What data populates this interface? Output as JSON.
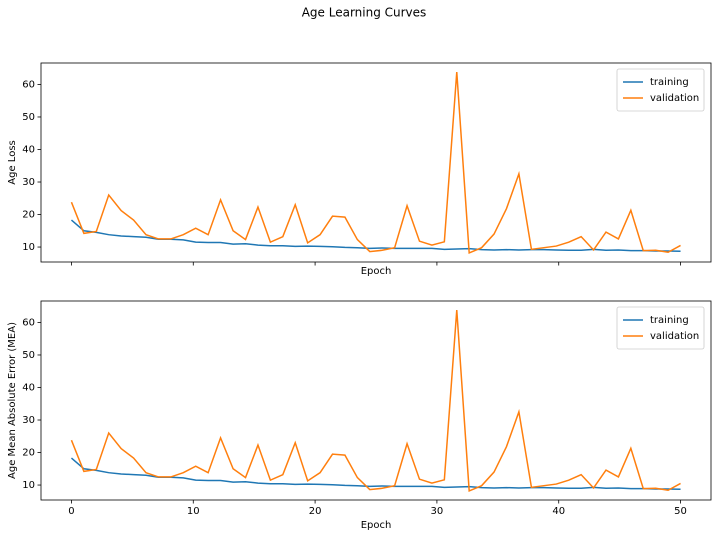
{
  "title": "Age Learning Curves",
  "chart_data": [
    {
      "type": "line",
      "xlabel": "Epoch",
      "ylabel": "Age Loss",
      "show_xtick_labels": false,
      "legend": "upper right",
      "x": [
        0,
        1.02,
        2.04,
        3.06,
        4.08,
        5.1,
        6.12,
        7.14,
        8.16,
        9.18,
        10.2,
        11.22,
        12.24,
        13.27,
        14.29,
        15.31,
        16.33,
        17.35,
        18.37,
        19.39,
        20.41,
        21.43,
        22.45,
        23.47,
        24.49,
        25.51,
        26.53,
        27.55,
        28.57,
        29.59,
        30.61,
        31.63,
        32.65,
        33.67,
        34.69,
        35.71,
        36.73,
        37.76,
        38.78,
        39.8,
        40.82,
        41.84,
        42.86,
        43.88,
        44.9,
        45.92,
        46.94,
        47.96,
        48.98,
        50
      ],
      "series": [
        {
          "name": "training",
          "color": "#1f77b4",
          "values": [
            18.3,
            15,
            14.5,
            13.8,
            13.4,
            13.2,
            13,
            12.4,
            12.4,
            12.2,
            11.5,
            11.4,
            11.4,
            10.9,
            11,
            10.6,
            10.4,
            10.4,
            10.2,
            10.3,
            10.2,
            10.1,
            9.9,
            9.8,
            9.6,
            9.7,
            9.6,
            9.6,
            9.6,
            9.6,
            9.3,
            9.4,
            9.5,
            9.2,
            9.1,
            9.2,
            9.1,
            9.2,
            9.2,
            9.1,
            9.0,
            9.0,
            9.3,
            9.0,
            9.1,
            8.9,
            8.9,
            8.8,
            8.8,
            8.7
          ]
        },
        {
          "name": "validation",
          "color": "#ff7f0e",
          "values": [
            23.8,
            14.2,
            14.8,
            26,
            21.2,
            18.3,
            13.8,
            12.5,
            12.5,
            13.8,
            15.8,
            13.8,
            24.5,
            15,
            12.3,
            22.3,
            11.5,
            13.2,
            23,
            11.3,
            13.8,
            19.5,
            19.2,
            12.3,
            8.6,
            9,
            9.8,
            22.7,
            11.8,
            10.6,
            11.6,
            63.8,
            8.2,
            9.8,
            14,
            21.8,
            32.5,
            9.3,
            9.8,
            10.3,
            11.5,
            13.2,
            9.1,
            14.6,
            12.5,
            21.3,
            8.9,
            9,
            8.4,
            10.5
          ]
        }
      ],
      "xlim": [
        -2.5,
        52.5
      ],
      "ylim": [
        5.4,
        66.6
      ],
      "xticks": [
        0,
        10,
        20,
        30,
        40,
        50
      ],
      "yticks": [
        10,
        20,
        30,
        40,
        50,
        60
      ]
    },
    {
      "type": "line",
      "xlabel": "Epoch",
      "ylabel": "Age Mean Absolute Error (MEA)",
      "show_xtick_labels": true,
      "legend": "upper right",
      "x": [
        0,
        1.02,
        2.04,
        3.06,
        4.08,
        5.1,
        6.12,
        7.14,
        8.16,
        9.18,
        10.2,
        11.22,
        12.24,
        13.27,
        14.29,
        15.31,
        16.33,
        17.35,
        18.37,
        19.39,
        20.41,
        21.43,
        22.45,
        23.47,
        24.49,
        25.51,
        26.53,
        27.55,
        28.57,
        29.59,
        30.61,
        31.63,
        32.65,
        33.67,
        34.69,
        35.71,
        36.73,
        37.76,
        38.78,
        39.8,
        40.82,
        41.84,
        42.86,
        43.88,
        44.9,
        45.92,
        46.94,
        47.96,
        48.98,
        50
      ],
      "series": [
        {
          "name": "training",
          "color": "#1f77b4",
          "values": [
            18.3,
            15,
            14.5,
            13.8,
            13.4,
            13.2,
            13,
            12.4,
            12.4,
            12.2,
            11.5,
            11.4,
            11.4,
            10.9,
            11,
            10.6,
            10.4,
            10.4,
            10.2,
            10.3,
            10.2,
            10.1,
            9.9,
            9.8,
            9.6,
            9.7,
            9.6,
            9.6,
            9.6,
            9.6,
            9.3,
            9.4,
            9.5,
            9.2,
            9.1,
            9.2,
            9.1,
            9.2,
            9.2,
            9.1,
            9.0,
            9.0,
            9.3,
            9.0,
            9.1,
            8.9,
            8.9,
            8.8,
            8.8,
            8.7
          ]
        },
        {
          "name": "validation",
          "color": "#ff7f0e",
          "values": [
            23.8,
            14.2,
            14.8,
            26,
            21.2,
            18.3,
            13.8,
            12.5,
            12.5,
            13.8,
            15.8,
            13.8,
            24.5,
            15,
            12.3,
            22.3,
            11.5,
            13.2,
            23,
            11.3,
            13.8,
            19.5,
            19.2,
            12.3,
            8.6,
            9,
            9.8,
            22.7,
            11.8,
            10.6,
            11.6,
            63.8,
            8.2,
            9.8,
            14,
            21.8,
            32.5,
            9.3,
            9.8,
            10.3,
            11.5,
            13.2,
            9.1,
            14.6,
            12.5,
            21.3,
            8.9,
            9,
            8.4,
            10.5
          ]
        }
      ],
      "xlim": [
        -2.5,
        52.5
      ],
      "ylim": [
        5.4,
        66.6
      ],
      "xticks": [
        0,
        10,
        20,
        30,
        40,
        50
      ],
      "yticks": [
        10,
        20,
        30,
        40,
        50,
        60
      ]
    }
  ]
}
